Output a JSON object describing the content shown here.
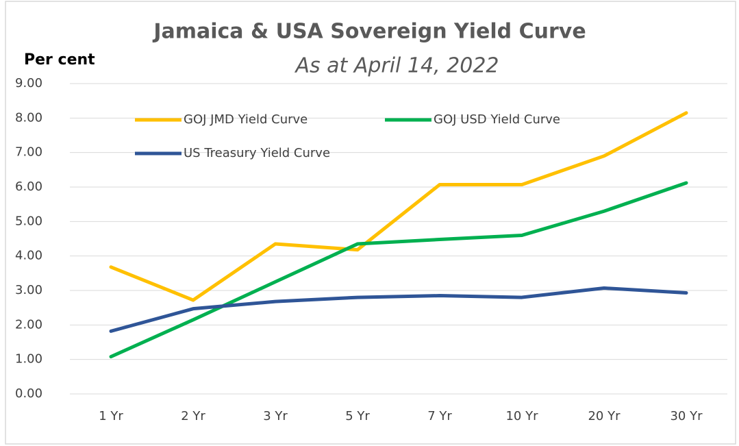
{
  "chart_data": {
    "type": "line",
    "title": "Jamaica & USA Sovereign Yield Curve",
    "subtitle": "As at April 14, 2022",
    "y_label": "Per cent",
    "categories": [
      "1 Yr",
      "2 Yr",
      "3 Yr",
      "5 Yr",
      "7 Yr",
      "10 Yr",
      "20 Yr",
      "30 Yr"
    ],
    "series": [
      {
        "name": "GOJ JMD Yield Curve",
        "color": "#ffc000",
        "values": [
          3.68,
          2.72,
          4.35,
          4.18,
          6.07,
          6.07,
          6.9,
          8.15
        ]
      },
      {
        "name": "GOJ USD Yield Curve",
        "color": "#00b050",
        "values": [
          1.08,
          2.15,
          3.25,
          4.35,
          4.48,
          4.6,
          5.3,
          6.12
        ]
      },
      {
        "name": "US Treasury  Yield Curve",
        "color": "#2f5597",
        "values": [
          1.82,
          2.47,
          2.68,
          2.8,
          2.85,
          2.8,
          3.07,
          2.93
        ]
      }
    ],
    "ylim": [
      0,
      9
    ],
    "yticks": [
      {
        "value": 0,
        "label": "0.00"
      },
      {
        "value": 1,
        "label": "1.00"
      },
      {
        "value": 2,
        "label": "2.00"
      },
      {
        "value": 3,
        "label": "3.00"
      },
      {
        "value": 4,
        "label": "4.00"
      },
      {
        "value": 5,
        "label": "5.00"
      },
      {
        "value": 6,
        "label": "6.00"
      },
      {
        "value": 7,
        "label": "7.00"
      },
      {
        "value": 8,
        "label": "8.00"
      },
      {
        "value": 9,
        "label": "9.00"
      }
    ],
    "grid": true
  }
}
